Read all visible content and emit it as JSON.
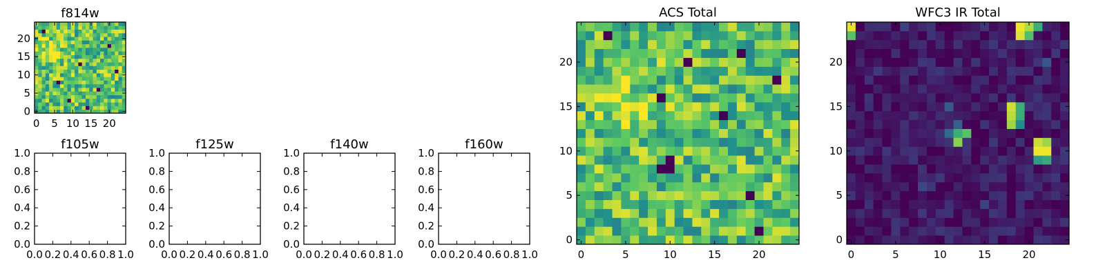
{
  "figure": {
    "type": "multi-panel image grid",
    "colormap": [
      "#440154",
      "#3b528b",
      "#21918c",
      "#5ec962",
      "#fde725"
    ]
  },
  "chart_data": [
    {
      "id": "f814w",
      "type": "heatmap",
      "title": "f814w",
      "xlim": [
        -0.5,
        24.5
      ],
      "ylim": [
        -0.5,
        24.5
      ],
      "xticks": [
        0,
        5,
        10,
        15,
        20
      ],
      "yticks": [
        0,
        5,
        10,
        15,
        20
      ],
      "grid_size": [
        25,
        25
      ],
      "base": 0.72,
      "spread": 0.26,
      "seed": 11,
      "blobs": [
        {
          "x": 4,
          "y": 16,
          "sigma": 2.2,
          "amp": 0.22
        }
      ],
      "low_pixels": [
        [
          2,
          22
        ],
        [
          9,
          3
        ],
        [
          12,
          13
        ],
        [
          17,
          6
        ],
        [
          20,
          18
        ],
        [
          6,
          8
        ],
        [
          14,
          1
        ],
        [
          22,
          11
        ]
      ]
    },
    {
      "id": "f105w",
      "type": "heatmap",
      "title": "f105w",
      "xlim": [
        0.0,
        1.0
      ],
      "ylim": [
        0.0,
        1.0
      ],
      "xticks": [
        0.0,
        0.2,
        0.4,
        0.6,
        0.8,
        1.0
      ],
      "yticks": [
        0.0,
        0.2,
        0.4,
        0.6,
        0.8,
        1.0
      ],
      "empty": true
    },
    {
      "id": "f125w",
      "type": "heatmap",
      "title": "f125w",
      "xlim": [
        0.0,
        1.0
      ],
      "ylim": [
        0.0,
        1.0
      ],
      "xticks": [
        0.0,
        0.2,
        0.4,
        0.6,
        0.8,
        1.0
      ],
      "yticks": [
        0.0,
        0.2,
        0.4,
        0.6,
        0.8,
        1.0
      ],
      "empty": true
    },
    {
      "id": "f140w",
      "type": "heatmap",
      "title": "f140w",
      "xlim": [
        0.0,
        1.0
      ],
      "ylim": [
        0.0,
        1.0
      ],
      "xticks": [
        0.0,
        0.2,
        0.4,
        0.6,
        0.8,
        1.0
      ],
      "yticks": [
        0.0,
        0.2,
        0.4,
        0.6,
        0.8,
        1.0
      ],
      "empty": true
    },
    {
      "id": "f160w",
      "type": "heatmap",
      "title": "f160w",
      "xlim": [
        0.0,
        1.0
      ],
      "ylim": [
        0.0,
        1.0
      ],
      "xticks": [
        0.0,
        0.2,
        0.4,
        0.6,
        0.8,
        1.0
      ],
      "yticks": [
        0.0,
        0.2,
        0.4,
        0.6,
        0.8,
        1.0
      ],
      "empty": true
    },
    {
      "id": "acs_total",
      "type": "heatmap",
      "title": "ACS Total",
      "xlim": [
        -0.5,
        24.5
      ],
      "ylim": [
        -0.5,
        24.5
      ],
      "xticks": [
        0,
        5,
        10,
        15,
        20
      ],
      "yticks": [
        0,
        5,
        10,
        15,
        20
      ],
      "grid_size": [
        25,
        25
      ],
      "base": 0.7,
      "spread": 0.26,
      "seed": 29,
      "blobs": [
        {
          "x": 4.5,
          "y": 15.5,
          "sigma": 1.8,
          "amp": 0.25
        },
        {
          "x": 11,
          "y": 13,
          "sigma": 1.2,
          "amp": 0.15
        }
      ],
      "low_pixels": [
        [
          9,
          8
        ],
        [
          10,
          8
        ],
        [
          10,
          9
        ],
        [
          9,
          16
        ],
        [
          16,
          14
        ],
        [
          19,
          5
        ],
        [
          18,
          21
        ],
        [
          22,
          18
        ],
        [
          3,
          23
        ],
        [
          12,
          20
        ],
        [
          20,
          1
        ]
      ]
    },
    {
      "id": "wfc3_ir_total",
      "type": "heatmap",
      "title": "WFC3 IR Total",
      "xlim": [
        -0.5,
        24.5
      ],
      "ylim": [
        -0.5,
        24.5
      ],
      "xticks": [
        0,
        5,
        10,
        15,
        20
      ],
      "yticks": [
        0,
        5,
        10,
        15,
        20
      ],
      "grid_size": [
        25,
        25
      ],
      "base": 0.07,
      "spread": 0.1,
      "seed": 47,
      "blobs": [],
      "bright_pixels": [
        [
          0,
          24,
          0.97
        ],
        [
          0,
          23,
          0.72
        ],
        [
          19,
          24,
          0.98
        ],
        [
          20,
          24,
          0.88
        ],
        [
          19,
          23,
          0.95
        ],
        [
          20,
          23,
          0.7
        ],
        [
          21,
          24,
          0.62
        ],
        [
          18,
          15,
          0.93
        ],
        [
          18,
          14,
          0.9
        ],
        [
          18,
          13,
          0.85
        ],
        [
          19,
          15,
          0.62
        ],
        [
          19,
          14,
          0.62
        ],
        [
          19,
          13,
          0.48
        ],
        [
          12,
          12,
          0.62
        ],
        [
          13,
          12,
          0.72
        ],
        [
          12,
          11,
          0.82
        ],
        [
          11,
          12,
          0.35
        ],
        [
          12,
          13,
          0.3
        ],
        [
          21,
          10,
          0.98
        ],
        [
          22,
          10,
          0.98
        ],
        [
          21,
          11,
          0.92
        ],
        [
          22,
          11,
          0.85
        ],
        [
          21,
          9,
          0.55
        ],
        [
          22,
          9,
          0.6
        ],
        [
          11,
          15,
          0.28
        ],
        [
          8,
          6,
          0.22
        ],
        [
          15,
          4,
          0.2
        ],
        [
          22,
          20,
          0.26
        ],
        [
          3,
          19,
          0.18
        ],
        [
          6,
          24,
          0.2
        ]
      ]
    }
  ]
}
